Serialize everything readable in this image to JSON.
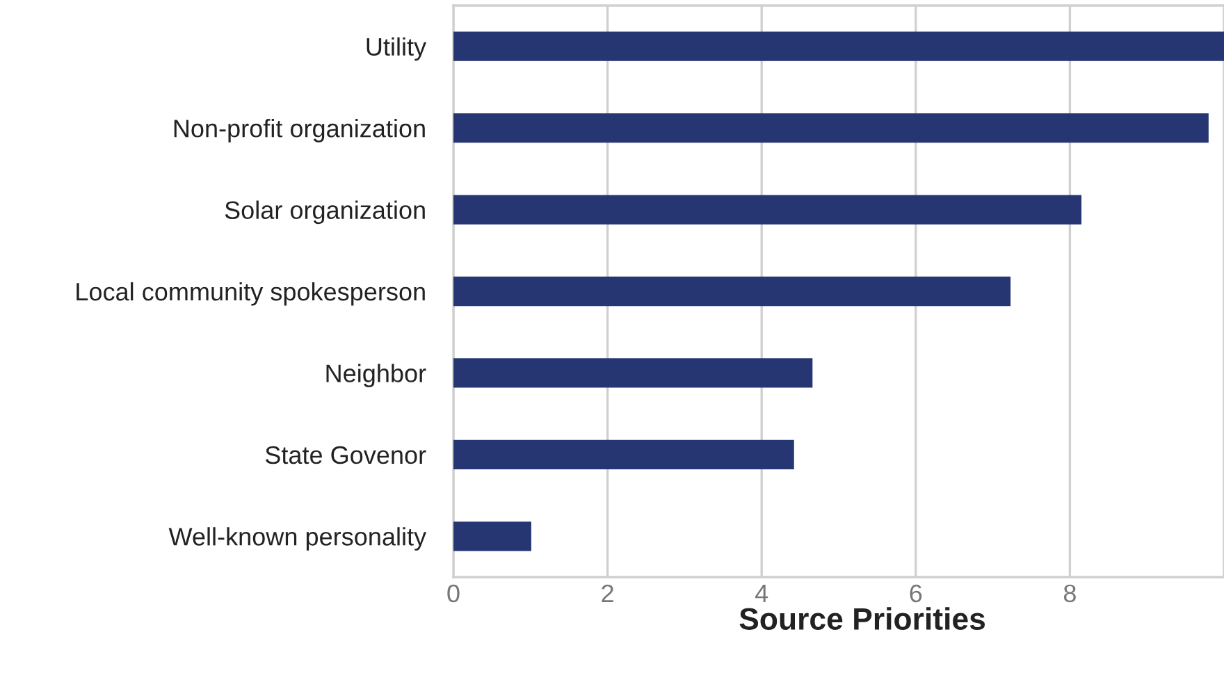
{
  "chart_data": {
    "type": "bar",
    "orientation": "horizontal",
    "title": "Source Priorities",
    "categories": [
      "Utility",
      "Non-profit organization",
      "Solar organization",
      "Local community spokesperson",
      "Neighbor",
      "State Govenor",
      "Well-known personality"
    ],
    "values": [
      10,
      9.8,
      8.15,
      7.23,
      4.66,
      4.42,
      1.01
    ],
    "color": "#263673",
    "xlim": [
      0,
      10
    ],
    "xticks": [
      0,
      2,
      4,
      6,
      8
    ],
    "grid": "x"
  }
}
